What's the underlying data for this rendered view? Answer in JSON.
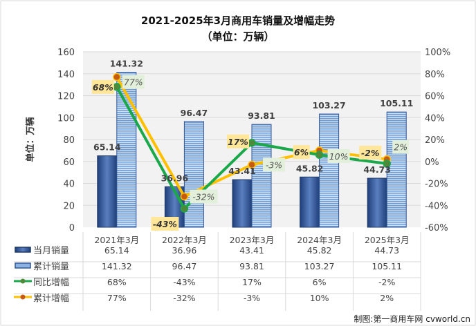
{
  "title": "2021-2025年3月商用车销量及增幅走势",
  "subtitle": "（单位：万辆）",
  "credit": "制图:第一商用车网 cvworld.cn",
  "chart_data": {
    "type": "bar+line",
    "categories": [
      "2021年3月",
      "2022年3月",
      "2023年3月",
      "2024年3月",
      "2025年3月"
    ],
    "ylabel": "单位：万辆",
    "ylim": [
      0,
      160
    ],
    "yticks": [
      "0",
      "20",
      "40",
      "60",
      "80",
      "100",
      "120",
      "140",
      "160"
    ],
    "y2lim": [
      -60,
      100
    ],
    "y2ticks": [
      "-60%",
      "-40%",
      "-20%",
      "0%",
      "20%",
      "40%",
      "60%",
      "80%",
      "100%"
    ],
    "grid": true,
    "legend": "bottom-table",
    "series": [
      {
        "name": "当月销量",
        "type": "bar",
        "axis": "left",
        "values": [
          65.14,
          36.96,
          43.41,
          45.82,
          44.73
        ],
        "labels": [
          "65.14",
          "36.96",
          "43.41",
          "45.82",
          "44.73"
        ],
        "color": "#2f4f8f"
      },
      {
        "name": "累计销量",
        "type": "bar",
        "axis": "left",
        "values": [
          141.32,
          96.47,
          93.81,
          103.27,
          105.11
        ],
        "labels": [
          "141.32",
          "96.47",
          "93.81",
          "103.27",
          "105.11"
        ],
        "color": "#8db3e2"
      },
      {
        "name": "同比增幅",
        "type": "line",
        "axis": "right",
        "values": [
          68,
          -43,
          17,
          6,
          -2
        ],
        "labels": [
          "68%",
          "-43%",
          "17%",
          "6%",
          "-2%"
        ],
        "color": "#1aa84a"
      },
      {
        "name": "累计增幅",
        "type": "line",
        "axis": "right",
        "values": [
          77,
          -32,
          -3,
          10,
          2
        ],
        "labels": [
          "77%",
          "-32%",
          "-3%",
          "10%",
          "2%"
        ],
        "color": "#ffc000"
      }
    ]
  }
}
